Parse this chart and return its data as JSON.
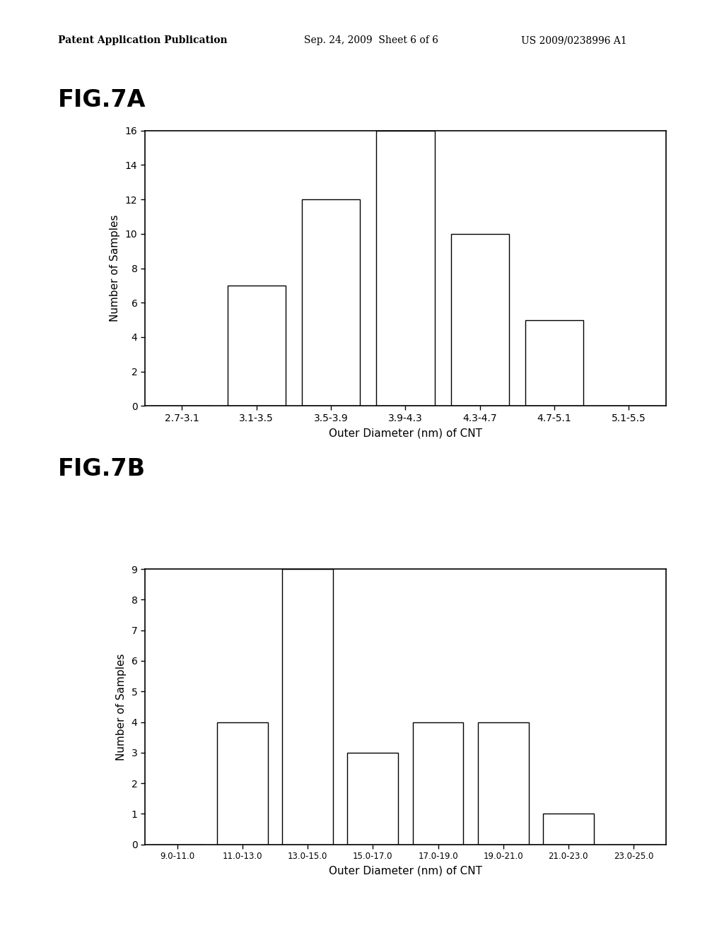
{
  "fig7a": {
    "title": "FIG.7A",
    "categories": [
      "2.7-3.1",
      "3.1-3.5",
      "3.5-3.9",
      "3.9-4.3",
      "4.3-4.7",
      "4.7-5.1",
      "5.1-5.5"
    ],
    "values": [
      0,
      7,
      12,
      16,
      10,
      5,
      0
    ],
    "ylabel": "Number of Samples",
    "xlabel": "Outer Diameter (nm) of CNT",
    "ylim": [
      0,
      16
    ],
    "yticks": [
      0,
      2,
      4,
      6,
      8,
      10,
      12,
      14,
      16
    ]
  },
  "fig7b": {
    "title": "FIG.7B",
    "categories": [
      "9.0-11.0",
      "11.0-13.0",
      "13.0-15.0",
      "15.0-17.0",
      "17.0-19.0",
      "19.0-21.0",
      "21.0-23.0",
      "23.0-25.0"
    ],
    "values": [
      0,
      4,
      9,
      3,
      4,
      4,
      1,
      0
    ],
    "ylabel": "Number of Samples",
    "xlabel": "Outer Diameter (nm) of CNT",
    "ylim": [
      0,
      9
    ],
    "yticks": [
      0,
      1,
      2,
      3,
      4,
      5,
      6,
      7,
      8,
      9
    ]
  },
  "header_left": "Patent Application Publication",
  "header_mid": "Sep. 24, 2009  Sheet 6 of 6",
  "header_right": "US 2009/0238996 A1",
  "bar_color": "#ffffff",
  "bar_edgecolor": "#000000",
  "background_color": "#ffffff",
  "text_color": "#000000",
  "title_fontsize": 24,
  "header_fontsize": 10,
  "axis_label_fontsize": 11,
  "tick_fontsize": 10
}
